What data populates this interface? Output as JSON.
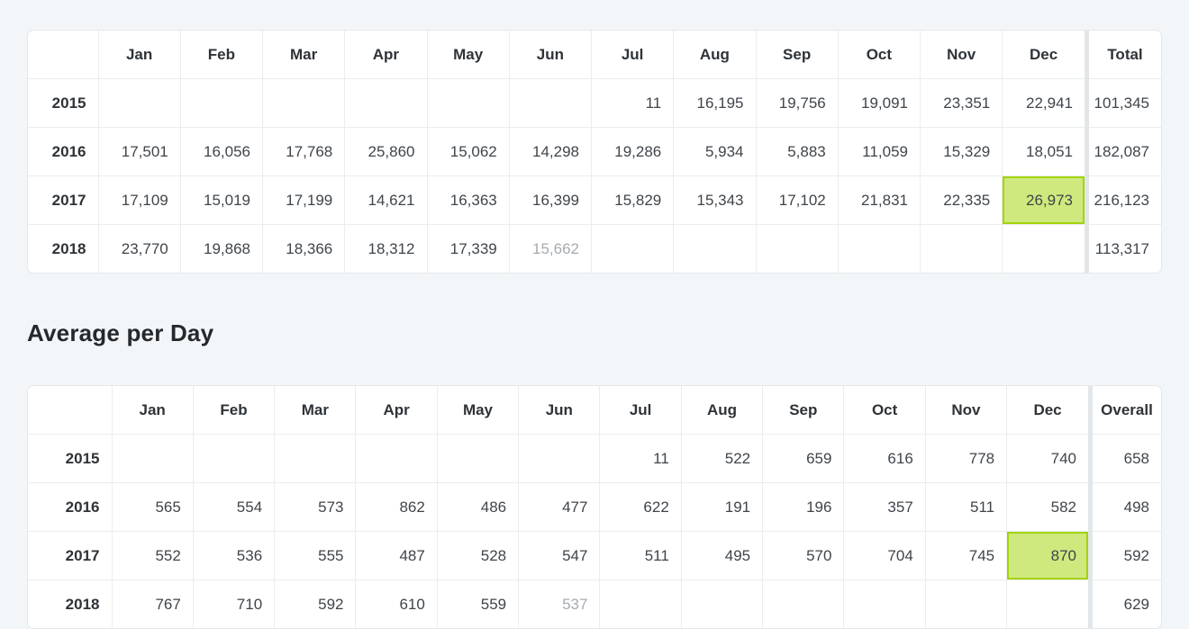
{
  "section_heading": "Average per Day",
  "colors": {
    "page_bg": "#f3f6f8",
    "card_bg": "#ffffff",
    "card_border": "#e4e8eb",
    "cell_border": "#eaedef",
    "header_text": "#2e3338",
    "value_text": "#3f454b",
    "muted_text": "#a6abb0",
    "separator_strip": "#e2e6e9",
    "highlight_bg": "#cfe97e",
    "highlight_border": "#a3d30b"
  },
  "monthly_table": {
    "columns": [
      "",
      "Jan",
      "Feb",
      "Mar",
      "Apr",
      "May",
      "Jun",
      "Jul",
      "Aug",
      "Sep",
      "Oct",
      "Nov",
      "Dec",
      "Total"
    ],
    "rows": [
      {
        "year": "2015",
        "values": [
          "",
          "",
          "",
          "",
          "",
          "",
          "11",
          "16,195",
          "19,756",
          "19,091",
          "23,351",
          "22,941"
        ],
        "total": "101,345",
        "highlight_col": -1,
        "muted_col": -1
      },
      {
        "year": "2016",
        "values": [
          "17,501",
          "16,056",
          "17,768",
          "25,860",
          "15,062",
          "14,298",
          "19,286",
          "5,934",
          "5,883",
          "11,059",
          "15,329",
          "18,051"
        ],
        "total": "182,087",
        "highlight_col": -1,
        "muted_col": -1
      },
      {
        "year": "2017",
        "values": [
          "17,109",
          "15,019",
          "17,199",
          "14,621",
          "16,363",
          "16,399",
          "15,829",
          "15,343",
          "17,102",
          "21,831",
          "22,335",
          "26,973"
        ],
        "total": "216,123",
        "highlight_col": 11,
        "muted_col": -1
      },
      {
        "year": "2018",
        "values": [
          "23,770",
          "19,868",
          "18,366",
          "18,312",
          "17,339",
          "15,662",
          "",
          "",
          "",
          "",
          "",
          ""
        ],
        "total": "113,317",
        "highlight_col": -1,
        "muted_col": 5
      }
    ]
  },
  "average_table": {
    "columns": [
      "",
      "Jan",
      "Feb",
      "Mar",
      "Apr",
      "May",
      "Jun",
      "Jul",
      "Aug",
      "Sep",
      "Oct",
      "Nov",
      "Dec",
      "Overall"
    ],
    "rows": [
      {
        "year": "2015",
        "values": [
          "",
          "",
          "",
          "",
          "",
          "",
          "11",
          "522",
          "659",
          "616",
          "778",
          "740"
        ],
        "total": "658",
        "highlight_col": -1,
        "muted_col": -1
      },
      {
        "year": "2016",
        "values": [
          "565",
          "554",
          "573",
          "862",
          "486",
          "477",
          "622",
          "191",
          "196",
          "357",
          "511",
          "582"
        ],
        "total": "498",
        "highlight_col": -1,
        "muted_col": -1
      },
      {
        "year": "2017",
        "values": [
          "552",
          "536",
          "555",
          "487",
          "528",
          "547",
          "511",
          "495",
          "570",
          "704",
          "745",
          "870"
        ],
        "total": "592",
        "highlight_col": 11,
        "muted_col": -1
      },
      {
        "year": "2018",
        "values": [
          "767",
          "710",
          "592",
          "610",
          "559",
          "537",
          "",
          "",
          "",
          "",
          "",
          ""
        ],
        "total": "629",
        "highlight_col": -1,
        "muted_col": 5
      }
    ]
  }
}
